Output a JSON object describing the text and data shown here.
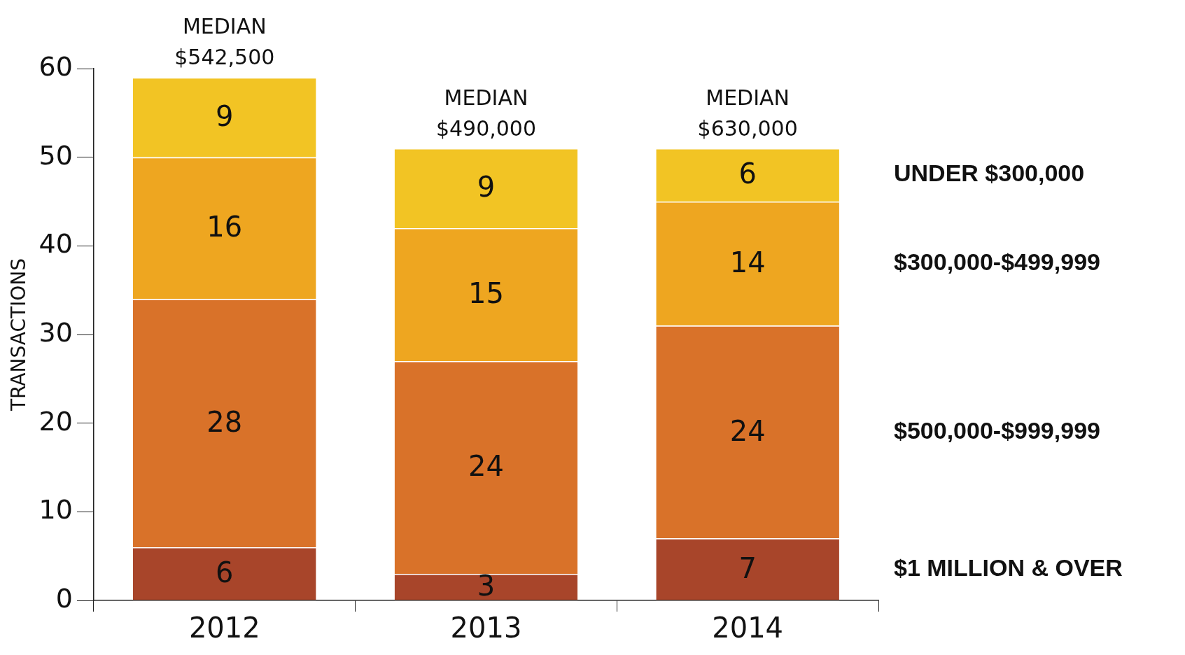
{
  "chart_data": {
    "type": "bar",
    "stacked": true,
    "ylabel": "TRANSACTIONS",
    "categories": [
      "2012",
      "2013",
      "2014"
    ],
    "series": [
      {
        "name": "$1 MILLION & OVER",
        "color": "#a8452a",
        "values": [
          6,
          3,
          7
        ]
      },
      {
        "name": "$500,000-$999,999",
        "color": "#d97229",
        "values": [
          28,
          24,
          24
        ]
      },
      {
        "name": "$300,000-$499,999",
        "color": "#eea620",
        "values": [
          16,
          15,
          14
        ]
      },
      {
        "name": "UNDER $300,000",
        "color": "#f2c424",
        "values": [
          9,
          9,
          6
        ]
      }
    ],
    "ylim": [
      0,
      60
    ],
    "yticks": [
      0,
      10,
      20,
      30,
      40,
      50,
      60
    ],
    "grid": false,
    "legend": false,
    "data_labels": true,
    "annotations": [
      {
        "text": "MEDIAN\n$542,500",
        "x": "2012",
        "y": 59
      },
      {
        "text": "MEDIAN\n$490,000",
        "x": "2013",
        "y": 51
      },
      {
        "text": "MEDIAN\n$630,000",
        "x": "2014",
        "y": 51
      }
    ]
  }
}
